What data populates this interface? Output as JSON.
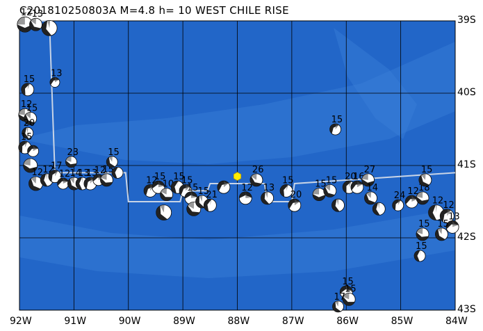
{
  "header": {
    "title": "C201810250803A M=4.8 h= 10 WEST CHILE RISE"
  },
  "map": {
    "lon_range": [
      -92,
      -84
    ],
    "lat_range": [
      -43,
      -39
    ],
    "ocean_color": "#2266c8",
    "grid_color": "#000000",
    "fault_line_color": "#c8d4e6",
    "epicenter_color": "#ffee00",
    "lat_labels": [
      {
        "text": "39S",
        "lat": -39
      },
      {
        "text": "40S",
        "lat": -40
      },
      {
        "text": "41S",
        "lat": -41
      },
      {
        "text": "42S",
        "lat": -42
      },
      {
        "text": "43S",
        "lat": -43
      }
    ],
    "lon_labels": [
      {
        "text": "92W",
        "lon": -92
      },
      {
        "text": "91W",
        "lon": -91
      },
      {
        "text": "90W",
        "lon": -90
      },
      {
        "text": "89W",
        "lon": -89
      },
      {
        "text": "88W",
        "lon": -88
      },
      {
        "text": "87W",
        "lon": -87
      },
      {
        "text": "86W",
        "lon": -86
      },
      {
        "text": "85W",
        "lon": -85
      },
      {
        "text": "84W",
        "lon": -84
      }
    ],
    "epicenter": {
      "lon": -88.0,
      "lat": -41.15
    },
    "fault_trace": [
      [
        -91.85,
        -39.0
      ],
      [
        -91.45,
        -39.0
      ],
      [
        -91.35,
        -41.1
      ],
      [
        -90.05,
        -41.1
      ],
      [
        -90.0,
        -41.5
      ],
      [
        -89.05,
        -41.5
      ],
      [
        -89.0,
        -41.35
      ],
      [
        -88.55,
        -41.35
      ],
      [
        -88.5,
        -41.25
      ],
      [
        -87.5,
        -41.25
      ],
      [
        -87.45,
        -41.5
      ],
      [
        -87.0,
        -41.5
      ],
      [
        -86.95,
        -41.25
      ],
      [
        -84.0,
        -41.1
      ]
    ],
    "focal_mechanisms": [
      {
        "lon": -91.9,
        "lat": -39.05,
        "label": "12",
        "r": 11
      },
      {
        "lon": -91.7,
        "lat": -39.05,
        "label": "13",
        "r": 9
      },
      {
        "lon": -91.45,
        "lat": -39.1,
        "label": "",
        "r": 11
      },
      {
        "lon": -91.85,
        "lat": -39.95,
        "label": "15",
        "r": 9
      },
      {
        "lon": -91.35,
        "lat": -39.85,
        "label": "13",
        "r": 7
      },
      {
        "lon": -91.9,
        "lat": -40.3,
        "label": "12",
        "r": 9
      },
      {
        "lon": -91.8,
        "lat": -40.35,
        "label": "15",
        "r": 9
      },
      {
        "lon": -91.85,
        "lat": -40.55,
        "label": "20",
        "r": 8
      },
      {
        "lon": -91.9,
        "lat": -40.75,
        "label": "15",
        "r": 9
      },
      {
        "lon": -91.75,
        "lat": -40.8,
        "label": "",
        "r": 8
      },
      {
        "lon": -91.8,
        "lat": -41.0,
        "label": "",
        "r": 10
      },
      {
        "lon": -91.7,
        "lat": -41.25,
        "label": "12",
        "r": 10
      },
      {
        "lon": -91.5,
        "lat": -41.2,
        "label": "12",
        "r": 9
      },
      {
        "lon": -91.35,
        "lat": -41.15,
        "label": "17",
        "r": 9
      },
      {
        "lon": -91.2,
        "lat": -41.25,
        "label": "12",
        "r": 8
      },
      {
        "lon": -91.05,
        "lat": -40.95,
        "label": "23",
        "r": 8
      },
      {
        "lon": -91.0,
        "lat": -41.25,
        "label": "14",
        "r": 9
      },
      {
        "lon": -90.85,
        "lat": -41.25,
        "label": "13",
        "r": 9
      },
      {
        "lon": -90.7,
        "lat": -41.25,
        "label": "13",
        "r": 9
      },
      {
        "lon": -90.55,
        "lat": -41.2,
        "label": "12",
        "r": 8
      },
      {
        "lon": -90.4,
        "lat": -41.2,
        "label": "15",
        "r": 9
      },
      {
        "lon": -90.3,
        "lat": -40.95,
        "label": "15",
        "r": 8
      },
      {
        "lon": -90.2,
        "lat": -41.1,
        "label": "",
        "r": 8
      },
      {
        "lon": -89.6,
        "lat": -41.35,
        "label": "12",
        "r": 9
      },
      {
        "lon": -89.45,
        "lat": -41.3,
        "label": "15",
        "r": 9
      },
      {
        "lon": -89.3,
        "lat": -41.4,
        "label": "10",
        "r": 9
      },
      {
        "lon": -89.35,
        "lat": -41.65,
        "label": "",
        "r": 11
      },
      {
        "lon": -89.1,
        "lat": -41.3,
        "label": "15",
        "r": 9
      },
      {
        "lon": -88.95,
        "lat": -41.35,
        "label": "15",
        "r": 9
      },
      {
        "lon": -88.85,
        "lat": -41.45,
        "label": "15",
        "r": 9
      },
      {
        "lon": -88.8,
        "lat": -41.6,
        "label": "",
        "r": 10
      },
      {
        "lon": -88.65,
        "lat": -41.5,
        "label": "15",
        "r": 9
      },
      {
        "lon": -88.5,
        "lat": -41.55,
        "label": "21",
        "r": 9
      },
      {
        "lon": -88.25,
        "lat": -41.3,
        "label": "",
        "r": 9
      },
      {
        "lon": -87.85,
        "lat": -41.45,
        "label": "12",
        "r": 9
      },
      {
        "lon": -87.65,
        "lat": -41.2,
        "label": "26",
        "r": 9
      },
      {
        "lon": -87.45,
        "lat": -41.45,
        "label": "13",
        "r": 9
      },
      {
        "lon": -87.1,
        "lat": -41.35,
        "label": "15",
        "r": 9
      },
      {
        "lon": -86.95,
        "lat": -41.55,
        "label": "20",
        "r": 9
      },
      {
        "lon": -86.5,
        "lat": -41.4,
        "label": "15",
        "r": 9
      },
      {
        "lon": -86.3,
        "lat": -41.35,
        "label": "15",
        "r": 9
      },
      {
        "lon": -86.15,
        "lat": -41.55,
        "label": "",
        "r": 9
      },
      {
        "lon": -85.95,
        "lat": -41.3,
        "label": "20",
        "r": 9
      },
      {
        "lon": -85.8,
        "lat": -41.3,
        "label": "16",
        "r": 9
      },
      {
        "lon": -85.6,
        "lat": -41.2,
        "label": "27",
        "r": 9
      },
      {
        "lon": -85.55,
        "lat": -41.45,
        "label": "14",
        "r": 9
      },
      {
        "lon": -85.4,
        "lat": -41.6,
        "label": "",
        "r": 9
      },
      {
        "lon": -85.05,
        "lat": -41.55,
        "label": "24",
        "r": 8
      },
      {
        "lon": -84.8,
        "lat": -41.5,
        "label": "12",
        "r": 9
      },
      {
        "lon": -84.6,
        "lat": -41.45,
        "label": "18",
        "r": 9
      },
      {
        "lon": -84.55,
        "lat": -41.2,
        "label": "15",
        "r": 9
      },
      {
        "lon": -84.35,
        "lat": -41.65,
        "label": "12",
        "r": 11
      },
      {
        "lon": -84.15,
        "lat": -41.7,
        "label": "12",
        "r": 10
      },
      {
        "lon": -84.05,
        "lat": -41.85,
        "label": "13",
        "r": 9
      },
      {
        "lon": -84.6,
        "lat": -41.95,
        "label": "15",
        "r": 9
      },
      {
        "lon": -84.25,
        "lat": -41.95,
        "label": "15",
        "r": 9
      },
      {
        "lon": -84.65,
        "lat": -42.25,
        "label": "15",
        "r": 8
      },
      {
        "lon": -86.2,
        "lat": -40.5,
        "label": "15",
        "r": 8
      },
      {
        "lon": -86.0,
        "lat": -42.75,
        "label": "15",
        "r": 9
      },
      {
        "lon": -85.95,
        "lat": -42.85,
        "label": "15",
        "r": 9
      },
      {
        "lon": -86.15,
        "lat": -42.95,
        "label": "17",
        "r": 8
      }
    ]
  }
}
